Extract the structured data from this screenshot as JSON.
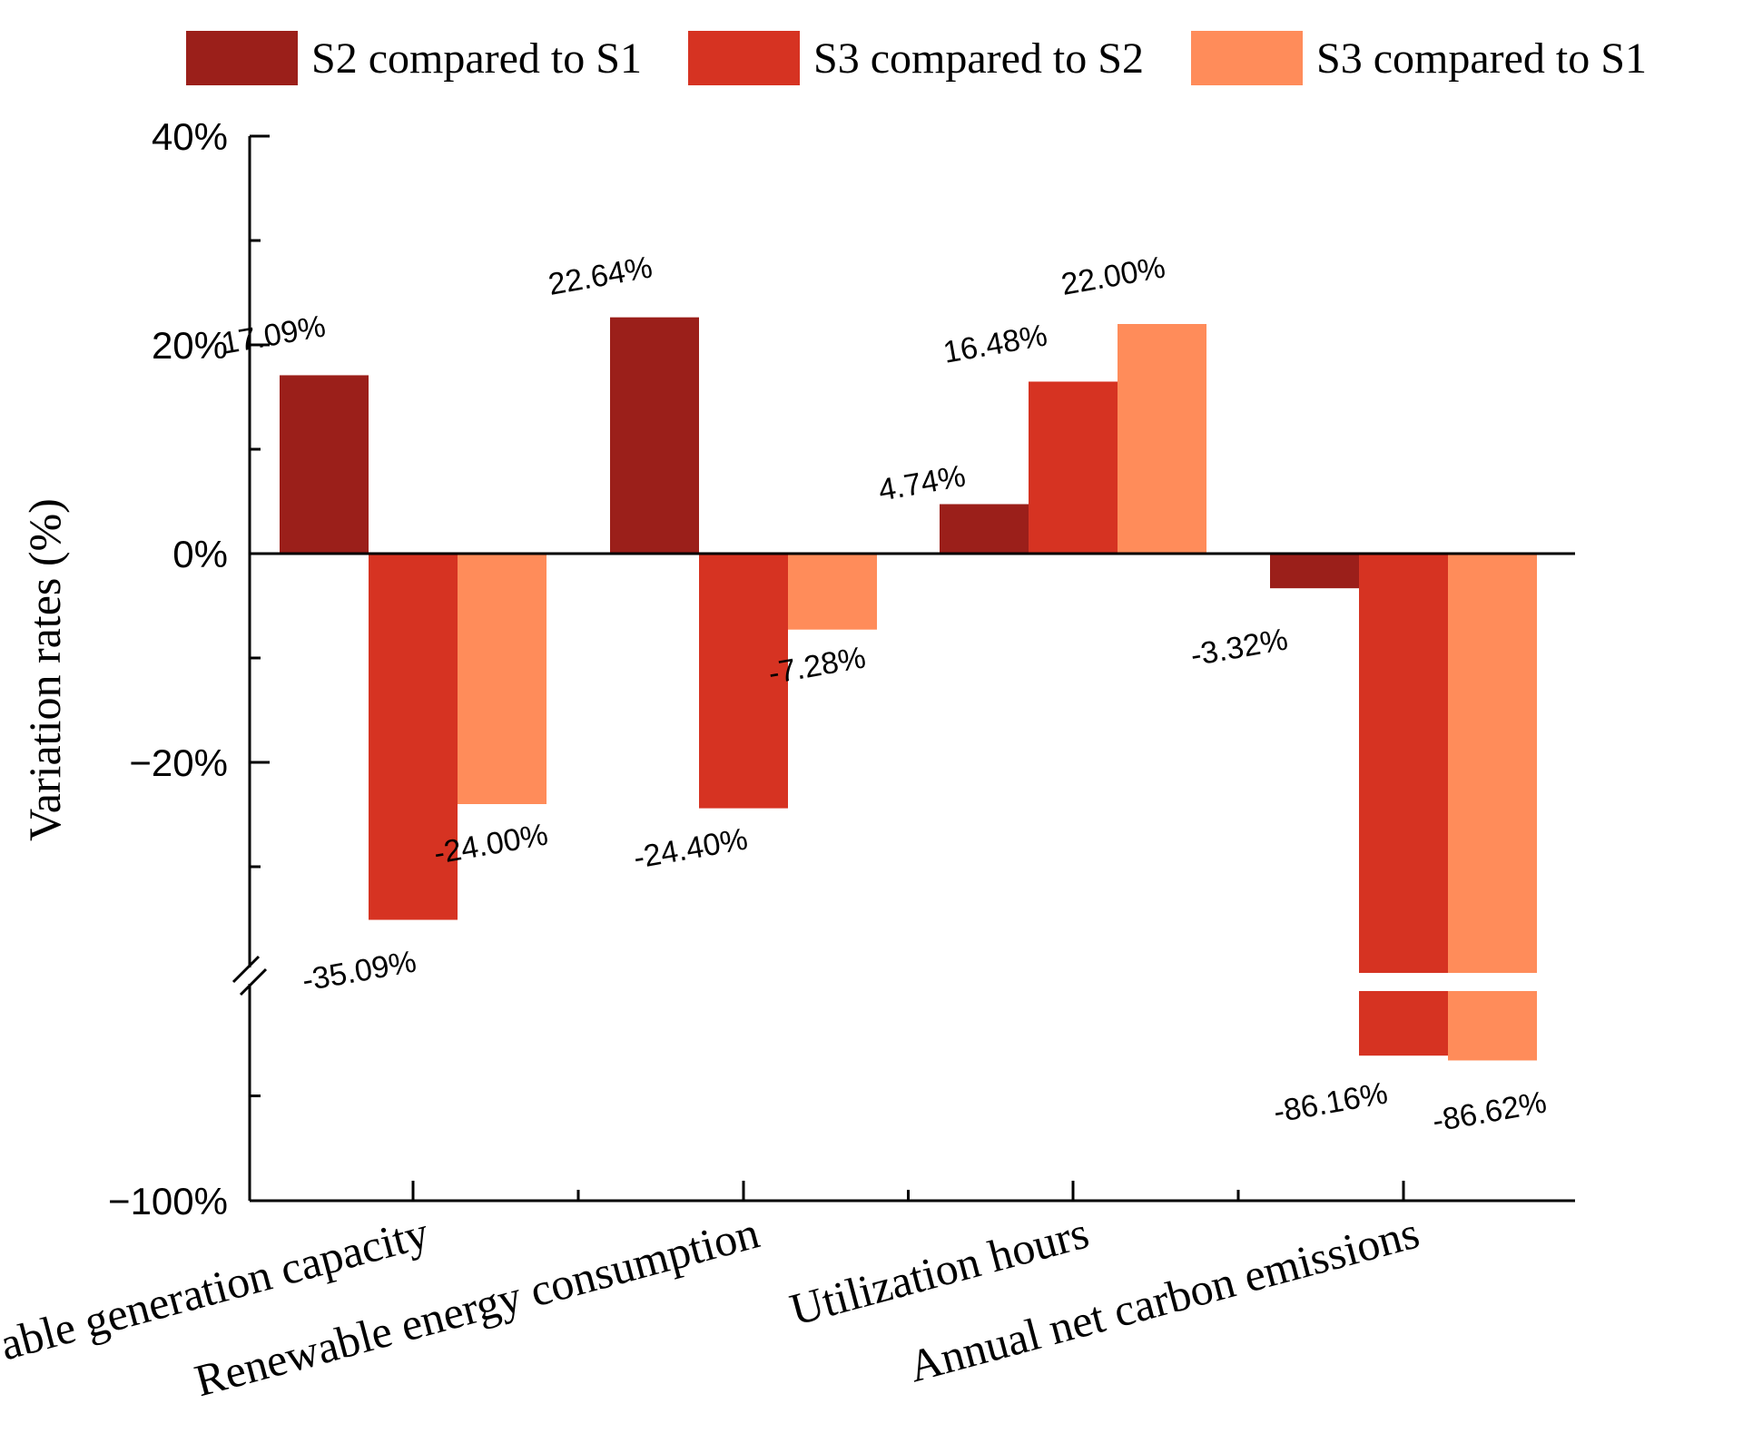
{
  "chart_data": {
    "type": "bar",
    "title": "",
    "xlabel": "",
    "ylabel": "Variation rates (%)",
    "categories": [
      "Renewable generation capacity",
      "Renewable energy consumption",
      "Utilization hours",
      "Annual net carbon emissions"
    ],
    "series": [
      {
        "name": "S2 compared to S1",
        "color": "#9B1F1A",
        "values": [
          17.09,
          22.64,
          4.74,
          -3.32
        ],
        "labels": [
          "17.09%",
          "22.64%",
          "4.74%",
          "-3.32%"
        ]
      },
      {
        "name": "S3 compared to S2",
        "color": "#D63322",
        "values": [
          -35.09,
          -24.4,
          16.48,
          -86.16
        ],
        "labels": [
          "-35.09%",
          "-24.40%",
          "16.48%",
          "-86.16%"
        ]
      },
      {
        "name": "S3 compared to S1",
        "color": "#FF8C5A",
        "values": [
          -24.0,
          -7.28,
          22.0,
          -86.62
        ],
        "labels": [
          "-24.00%",
          "-7.28%",
          "22.00%",
          "-86.62%"
        ]
      }
    ],
    "y_ticks": [
      {
        "value": 40,
        "label": "40%"
      },
      {
        "value": 20,
        "label": "20%"
      },
      {
        "value": 0,
        "label": "0%"
      },
      {
        "value": -20,
        "label": "−20%"
      },
      {
        "value": -100,
        "label": "−100%"
      }
    ],
    "ylim": [
      -100,
      40
    ],
    "axis_break": {
      "lower_segment": [
        -100,
        -80
      ],
      "upper_segment": [
        -40,
        40
      ]
    },
    "legend_position": "top",
    "grid": false
  }
}
